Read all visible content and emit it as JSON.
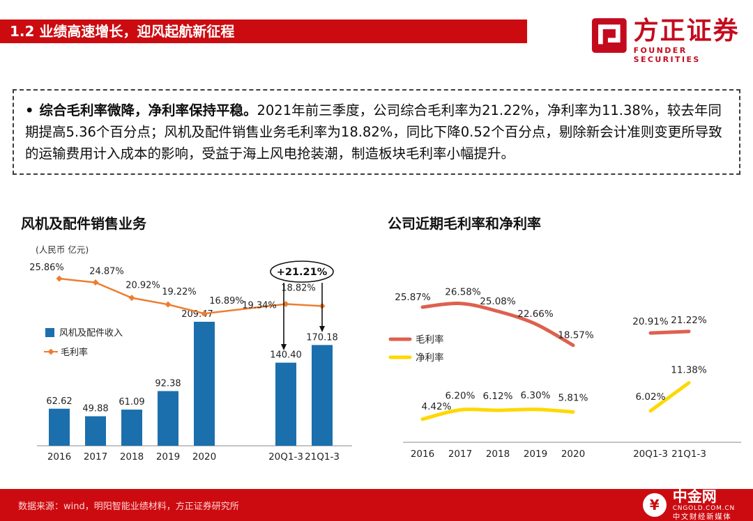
{
  "header": {
    "title": "1.2 业绩高速增长，迎风起航新征程",
    "brand": {
      "name": "方正证券",
      "subtitle": "FOUNDER SECURITIES"
    }
  },
  "summary": {
    "bullet": "•",
    "lead": "综合毛利率微降，净利率保持平稳。",
    "body": "2021年前三季度，公司综合毛利率为21.22%，净利率为11.38%，较去年同期提高5.36个百分点；风机及配件销售业务毛利率为18.82%，同比下降0.52个百分点，剔除新会计准则变更所导致的运输费用计入成本的影响，受益于海上风电抢装潮，制造板块毛利率小幅提升。"
  },
  "chart_data": [
    {
      "type": "bar",
      "title": "风机及配件销售业务",
      "unit_label": "(人民币 亿元)",
      "categories": [
        "2016",
        "2017",
        "2018",
        "2019",
        "2020",
        "20Q1-3",
        "21Q1-3"
      ],
      "series": [
        {
          "name": "风机及配件收入",
          "chart_type": "bar",
          "color": "#1c6fad",
          "values": [
            62.62,
            49.88,
            61.09,
            92.38,
            209.47,
            140.4,
            170.18
          ],
          "labels": [
            "62.62",
            "49.88",
            "61.09",
            "92.38",
            "209.47",
            "140.40",
            "170.18"
          ]
        },
        {
          "name": "毛利率",
          "chart_type": "line",
          "color": "#ed7d31",
          "values": [
            25.86,
            24.87,
            20.92,
            19.22,
            16.89,
            19.34,
            18.82
          ],
          "labels": [
            "25.86%",
            "24.87%",
            "20.92%",
            "19.22%",
            "16.89%",
            "19.34%",
            "18.82%"
          ]
        }
      ],
      "annotation": "+21.21%",
      "legend_position": "middle-left",
      "ylabel": "人民币 亿元"
    },
    {
      "type": "line",
      "title": "公司近期毛利率和净利率",
      "categories": [
        "2016",
        "2017",
        "2018",
        "2019",
        "2020",
        "20Q1-3",
        "21Q1-3"
      ],
      "series": [
        {
          "name": "毛利率",
          "color": "#dd614f",
          "break_after": 4,
          "values": [
            25.87,
            26.58,
            25.08,
            22.66,
            18.57,
            20.91,
            21.22
          ],
          "labels": [
            "25.87%",
            "26.58%",
            "25.08%",
            "22.66%",
            "18.57%",
            "20.91%",
            "21.22%"
          ]
        },
        {
          "name": "净利率",
          "color": "#ffd800",
          "break_after": 4,
          "values": [
            4.42,
            6.2,
            6.12,
            6.3,
            5.81,
            6.02,
            11.38
          ],
          "labels": [
            "4.42%",
            "6.20%",
            "6.12%",
            "6.30%",
            "5.81%",
            "6.02%",
            "11.38%"
          ]
        }
      ],
      "legend_position": "middle-left"
    }
  ],
  "footer": {
    "source": "数据来源：wind，明阳智能业绩材料，方正证券研究所",
    "logo": {
      "name": "中金网",
      "icon": "yuan-circle-icon",
      "icon_glyph": "¥",
      "domain": "CNGOLD.COM.CN",
      "tagline": "中文财经新媒体"
    }
  },
  "colors": {
    "banner_red": "#cc0b10",
    "brand_red": "#c40b1e",
    "bar_blue": "#1c6fad",
    "line_orange": "#ed7d31",
    "line_red": "#dd614f",
    "line_yellow": "#ffd800"
  }
}
